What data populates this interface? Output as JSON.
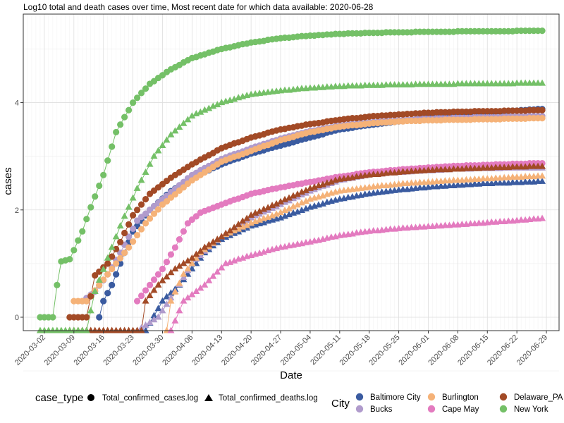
{
  "chart_data": {
    "type": "line",
    "title": "Log10 total and death cases over time, Most recent date for which data available: 2020-06-28",
    "xlabel": "Date",
    "ylabel": "cases",
    "x_range": [
      "2020-02-26",
      "2020-07-02"
    ],
    "ylim": [
      -0.25,
      5.65
    ],
    "x_ticks": [
      "2020-03-02",
      "2020-03-09",
      "2020-03-16",
      "2020-03-23",
      "2020-03-30",
      "2020-04-06",
      "2020-04-13",
      "2020-04-20",
      "2020-04-27",
      "2020-05-04",
      "2020-05-11",
      "2020-05-18",
      "2020-05-25",
      "2020-06-01",
      "2020-06-08",
      "2020-06-15",
      "2020-06-22",
      "2020-06-29"
    ],
    "y_ticks": [
      0,
      2,
      4
    ],
    "grid": true,
    "legend_placement": "bottom",
    "legend": {
      "case_type_title": "case_type",
      "case_types": [
        {
          "key": "cases",
          "label": "Total_confirmed_cases.log",
          "shape": "circle"
        },
        {
          "key": "deaths",
          "label": "Total_confirmed_deaths.log",
          "shape": "triangle"
        }
      ],
      "city_title": "City"
    },
    "series": [
      {
        "name": "Baltimore City",
        "color": "#3a5ba0",
        "cases": {
          "start": "2020-03-15",
          "anchors": [
            [
              "2020-03-15",
              0
            ],
            [
              "2020-03-16",
              0.3
            ],
            [
              "2020-03-18",
              0.6
            ],
            [
              "2020-03-20",
              1.0
            ],
            [
              "2020-03-23",
              1.6
            ],
            [
              "2020-03-27",
              2.0
            ],
            [
              "2020-04-01",
              2.35
            ],
            [
              "2020-04-06",
              2.6
            ],
            [
              "2020-04-13",
              2.85
            ],
            [
              "2020-04-20",
              3.05
            ],
            [
              "2020-04-27",
              3.2
            ],
            [
              "2020-05-04",
              3.35
            ],
            [
              "2020-05-11",
              3.5
            ],
            [
              "2020-05-18",
              3.58
            ],
            [
              "2020-05-25",
              3.65
            ],
            [
              "2020-06-01",
              3.72
            ],
            [
              "2020-06-08",
              3.78
            ],
            [
              "2020-06-15",
              3.82
            ],
            [
              "2020-06-22",
              3.85
            ],
            [
              "2020-06-28",
              3.88
            ]
          ]
        },
        "deaths": {
          "start": "2020-03-26",
          "anchors": [
            [
              "2020-03-26",
              -0.25
            ],
            [
              "2020-03-30",
              0.3
            ],
            [
              "2020-04-03",
              0.6
            ],
            [
              "2020-04-06",
              0.9
            ],
            [
              "2020-04-09",
              1.2
            ],
            [
              "2020-04-13",
              1.45
            ],
            [
              "2020-04-20",
              1.7
            ],
            [
              "2020-04-27",
              1.85
            ],
            [
              "2020-05-04",
              2.05
            ],
            [
              "2020-05-11",
              2.2
            ],
            [
              "2020-05-18",
              2.3
            ],
            [
              "2020-05-25",
              2.37
            ],
            [
              "2020-06-01",
              2.42
            ],
            [
              "2020-06-08",
              2.46
            ],
            [
              "2020-06-15",
              2.49
            ],
            [
              "2020-06-22",
              2.51
            ],
            [
              "2020-06-28",
              2.53
            ]
          ]
        }
      },
      {
        "name": "Bucks",
        "color": "#b09bcc",
        "cases": {
          "start": "2020-03-11",
          "anchors": [
            [
              "2020-03-11",
              0.3
            ],
            [
              "2020-03-14",
              0.48
            ],
            [
              "2020-03-17",
              0.8
            ],
            [
              "2020-03-20",
              1.2
            ],
            [
              "2020-03-24",
              1.8
            ],
            [
              "2020-03-30",
              2.2
            ],
            [
              "2020-04-06",
              2.65
            ],
            [
              "2020-04-13",
              2.95
            ],
            [
              "2020-04-20",
              3.15
            ],
            [
              "2020-04-27",
              3.33
            ],
            [
              "2020-05-04",
              3.47
            ],
            [
              "2020-05-11",
              3.57
            ],
            [
              "2020-05-18",
              3.63
            ],
            [
              "2020-05-25",
              3.67
            ],
            [
              "2020-06-01",
              3.7
            ],
            [
              "2020-06-08",
              3.72
            ],
            [
              "2020-06-15",
              3.73
            ],
            [
              "2020-06-22",
              3.74
            ],
            [
              "2020-06-28",
              3.75
            ]
          ]
        },
        "deaths": {
          "start": "2020-03-24",
          "anchors": [
            [
              "2020-03-24",
              -0.25
            ],
            [
              "2020-03-29",
              0.0
            ],
            [
              "2020-04-02",
              0.48
            ],
            [
              "2020-04-06",
              1.0
            ],
            [
              "2020-04-10",
              1.3
            ],
            [
              "2020-04-13",
              1.5
            ],
            [
              "2020-04-20",
              1.85
            ],
            [
              "2020-04-27",
              2.1
            ],
            [
              "2020-05-04",
              2.35
            ],
            [
              "2020-05-11",
              2.55
            ],
            [
              "2020-05-18",
              2.65
            ],
            [
              "2020-05-25",
              2.7
            ],
            [
              "2020-06-01",
              2.73
            ],
            [
              "2020-06-08",
              2.76
            ],
            [
              "2020-06-15",
              2.77
            ],
            [
              "2020-06-22",
              2.78
            ],
            [
              "2020-06-28",
              2.78
            ]
          ]
        }
      },
      {
        "name": "Burlington",
        "color": "#f5b278",
        "cases": {
          "start": "2020-03-09",
          "anchors": [
            [
              "2020-03-09",
              0.3
            ],
            [
              "2020-03-12",
              0.3
            ],
            [
              "2020-03-15",
              0.6
            ],
            [
              "2020-03-18",
              0.9
            ],
            [
              "2020-03-22",
              1.3
            ],
            [
              "2020-03-26",
              1.75
            ],
            [
              "2020-03-30",
              2.1
            ],
            [
              "2020-04-06",
              2.55
            ],
            [
              "2020-04-13",
              2.9
            ],
            [
              "2020-04-20",
              3.1
            ],
            [
              "2020-04-27",
              3.3
            ],
            [
              "2020-05-04",
              3.45
            ],
            [
              "2020-05-11",
              3.55
            ],
            [
              "2020-05-18",
              3.61
            ],
            [
              "2020-05-25",
              3.65
            ],
            [
              "2020-06-01",
              3.67
            ],
            [
              "2020-06-08",
              3.68
            ],
            [
              "2020-06-15",
              3.69
            ],
            [
              "2020-06-22",
              3.7
            ],
            [
              "2020-06-28",
              3.71
            ]
          ]
        },
        "deaths": {
          "start": "2020-03-31",
          "anchors": [
            [
              "2020-03-31",
              -0.25
            ],
            [
              "2020-04-01",
              0.3
            ],
            [
              "2020-04-04",
              0.8
            ],
            [
              "2020-04-08",
              1.2
            ],
            [
              "2020-04-13",
              1.5
            ],
            [
              "2020-04-20",
              1.75
            ],
            [
              "2020-04-27",
              1.95
            ],
            [
              "2020-05-04",
              2.2
            ],
            [
              "2020-05-11",
              2.35
            ],
            [
              "2020-05-18",
              2.42
            ],
            [
              "2020-05-25",
              2.48
            ],
            [
              "2020-06-01",
              2.52
            ],
            [
              "2020-06-08",
              2.55
            ],
            [
              "2020-06-15",
              2.58
            ],
            [
              "2020-06-22",
              2.61
            ],
            [
              "2020-06-28",
              2.63
            ]
          ]
        }
      },
      {
        "name": "Cape May",
        "color": "#e37bbf",
        "cases": {
          "start": "2020-03-24",
          "anchors": [
            [
              "2020-03-24",
              0.3
            ],
            [
              "2020-03-27",
              0.6
            ],
            [
              "2020-03-30",
              0.9
            ],
            [
              "2020-04-02",
              1.3
            ],
            [
              "2020-04-05",
              1.75
            ],
            [
              "2020-04-08",
              1.95
            ],
            [
              "2020-04-13",
              2.1
            ],
            [
              "2020-04-20",
              2.3
            ],
            [
              "2020-04-27",
              2.42
            ],
            [
              "2020-05-04",
              2.52
            ],
            [
              "2020-05-11",
              2.62
            ],
            [
              "2020-05-18",
              2.7
            ],
            [
              "2020-05-25",
              2.75
            ],
            [
              "2020-06-01",
              2.79
            ],
            [
              "2020-06-08",
              2.82
            ],
            [
              "2020-06-15",
              2.84
            ],
            [
              "2020-06-22",
              2.86
            ],
            [
              "2020-06-28",
              2.87
            ]
          ]
        },
        "deaths": {
          "start": "2020-04-01",
          "anchors": [
            [
              "2020-04-01",
              -0.25
            ],
            [
              "2020-04-04",
              0.3
            ],
            [
              "2020-04-09",
              0.6
            ],
            [
              "2020-04-14",
              1.0
            ],
            [
              "2020-04-20",
              1.15
            ],
            [
              "2020-04-27",
              1.3
            ],
            [
              "2020-05-04",
              1.4
            ],
            [
              "2020-05-11",
              1.52
            ],
            [
              "2020-05-18",
              1.6
            ],
            [
              "2020-05-25",
              1.65
            ],
            [
              "2020-06-01",
              1.69
            ],
            [
              "2020-06-08",
              1.72
            ],
            [
              "2020-06-15",
              1.76
            ],
            [
              "2020-06-22",
              1.8
            ],
            [
              "2020-06-28",
              1.84
            ]
          ]
        }
      },
      {
        "name": "Delaware_PA",
        "color": "#a24a26",
        "cases": {
          "start": "2020-03-08",
          "anchors": [
            [
              "2020-03-08",
              0
            ],
            [
              "2020-03-12",
              0
            ],
            [
              "2020-03-14",
              0.78
            ],
            [
              "2020-03-17",
              1.0
            ],
            [
              "2020-03-20",
              1.4
            ],
            [
              "2020-03-23",
              1.9
            ],
            [
              "2020-03-27",
              2.3
            ],
            [
              "2020-04-01",
              2.6
            ],
            [
              "2020-04-06",
              2.85
            ],
            [
              "2020-04-13",
              3.15
            ],
            [
              "2020-04-20",
              3.35
            ],
            [
              "2020-04-27",
              3.5
            ],
            [
              "2020-05-04",
              3.6
            ],
            [
              "2020-05-11",
              3.68
            ],
            [
              "2020-05-18",
              3.74
            ],
            [
              "2020-05-25",
              3.78
            ],
            [
              "2020-06-01",
              3.81
            ],
            [
              "2020-06-08",
              3.83
            ],
            [
              "2020-06-15",
              3.84
            ],
            [
              "2020-06-22",
              3.85
            ],
            [
              "2020-06-28",
              3.86
            ]
          ]
        },
        "deaths": {
          "start": "2020-03-08",
          "anchors": [
            [
              "2020-03-08",
              -0.25
            ],
            [
              "2020-03-25",
              -0.25
            ],
            [
              "2020-03-26",
              0.3
            ],
            [
              "2020-03-29",
              0.6
            ],
            [
              "2020-04-02",
              0.9
            ],
            [
              "2020-04-06",
              1.1
            ],
            [
              "2020-04-09",
              1.3
            ],
            [
              "2020-04-13",
              1.5
            ],
            [
              "2020-04-20",
              1.9
            ],
            [
              "2020-04-27",
              2.15
            ],
            [
              "2020-05-04",
              2.4
            ],
            [
              "2020-05-11",
              2.57
            ],
            [
              "2020-05-18",
              2.65
            ],
            [
              "2020-05-25",
              2.7
            ],
            [
              "2020-06-01",
              2.74
            ],
            [
              "2020-06-08",
              2.76
            ],
            [
              "2020-06-15",
              2.78
            ],
            [
              "2020-06-22",
              2.8
            ],
            [
              "2020-06-28",
              2.81
            ]
          ]
        }
      },
      {
        "name": "New York",
        "color": "#74c067",
        "cases": {
          "start": "2020-03-01",
          "anchors": [
            [
              "2020-03-01",
              0
            ],
            [
              "2020-03-04",
              0
            ],
            [
              "2020-03-05",
              0.6
            ],
            [
              "2020-03-06",
              1.04
            ],
            [
              "2020-03-08",
              1.08
            ],
            [
              "2020-03-11",
              1.6
            ],
            [
              "2020-03-13",
              2.05
            ],
            [
              "2020-03-16",
              2.65
            ],
            [
              "2020-03-19",
              3.45
            ],
            [
              "2020-03-23",
              4.0
            ],
            [
              "2020-03-27",
              4.35
            ],
            [
              "2020-04-01",
              4.62
            ],
            [
              "2020-04-06",
              4.83
            ],
            [
              "2020-04-13",
              5.0
            ],
            [
              "2020-04-20",
              5.12
            ],
            [
              "2020-04-27",
              5.2
            ],
            [
              "2020-05-04",
              5.25
            ],
            [
              "2020-05-11",
              5.28
            ],
            [
              "2020-05-18",
              5.3
            ],
            [
              "2020-05-25",
              5.31
            ],
            [
              "2020-06-01",
              5.32
            ],
            [
              "2020-06-15",
              5.33
            ],
            [
              "2020-06-28",
              5.34
            ]
          ]
        },
        "deaths": {
          "start": "2020-03-01",
          "anchors": [
            [
              "2020-03-01",
              -0.25
            ],
            [
              "2020-03-12",
              -0.25
            ],
            [
              "2020-03-14",
              0.48
            ],
            [
              "2020-03-17",
              1.1
            ],
            [
              "2020-03-20",
              1.7
            ],
            [
              "2020-03-24",
              2.4
            ],
            [
              "2020-03-28",
              3.0
            ],
            [
              "2020-04-01",
              3.4
            ],
            [
              "2020-04-06",
              3.75
            ],
            [
              "2020-04-13",
              4.0
            ],
            [
              "2020-04-20",
              4.15
            ],
            [
              "2020-04-27",
              4.22
            ],
            [
              "2020-05-04",
              4.27
            ],
            [
              "2020-05-11",
              4.3
            ],
            [
              "2020-05-18",
              4.32
            ],
            [
              "2020-05-25",
              4.33
            ],
            [
              "2020-06-01",
              4.34
            ],
            [
              "2020-06-15",
              4.35
            ],
            [
              "2020-06-28",
              4.36
            ]
          ]
        }
      }
    ]
  }
}
